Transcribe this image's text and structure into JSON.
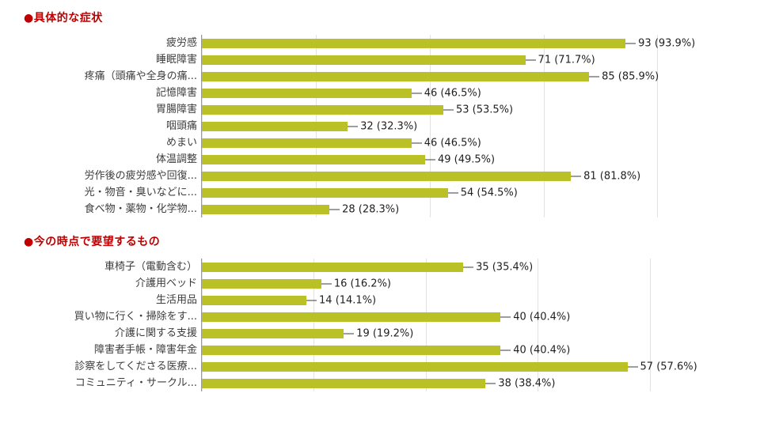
{
  "page": {
    "background": "#ffffff",
    "heading_color": "#c00000",
    "bar_color": "#b9c127",
    "gridline_color": "#e2e2e2",
    "axis_line_color": "#9a9a9a"
  },
  "chart_data": [
    {
      "type": "bar",
      "orientation": "horizontal",
      "title": "●具体的な症状",
      "categories": [
        "疲労感",
        "睡眠障害",
        "疼痛（頭痛や全身の痛...",
        "記憶障害",
        "胃腸障害",
        "咽頭痛",
        "めまい",
        "体温調整",
        "労作後の疲労感や回復...",
        "光・物音・臭いなどに...",
        "食べ物・薬物・化学物..."
      ],
      "values": [
        93,
        71,
        85,
        46,
        53,
        32,
        46,
        49,
        81,
        54,
        28
      ],
      "labels": [
        "93 (93.9%)",
        "71 (71.7%)",
        "85 (85.9%)",
        "46 (46.5%)",
        "53 (53.5%)",
        "32 (32.3%)",
        "46 (46.5%)",
        "49 (49.5%)",
        "81 (81.8%)",
        "54 (54.5%)",
        "28 (28.3%)"
      ],
      "xlabel": "",
      "ylabel": "",
      "xlim": [
        0,
        118
      ],
      "gridlines": [
        0,
        25,
        50,
        75,
        100
      ],
      "grid": true,
      "legend": "none",
      "bar_color": "#b9c127"
    },
    {
      "type": "bar",
      "orientation": "horizontal",
      "title": "●今の時点で要望するもの",
      "categories": [
        "車椅子（電動含む）",
        "介護用ベッド",
        "生活用品",
        "買い物に行く・掃除をす...",
        "介護に関する支援",
        "障害者手帳・障害年金",
        "診察をしてくださる医療...",
        "コミュニティ・サークル..."
      ],
      "values": [
        35,
        16,
        14,
        40,
        19,
        40,
        57,
        38
      ],
      "labels": [
        "35 (35.4%)",
        "16 (16.2%)",
        "14 (14.1%)",
        "40 (40.4%)",
        "19 (19.2%)",
        "40 (40.4%)",
        "57 (57.6%)",
        "38 (38.4%)"
      ],
      "xlabel": "",
      "ylabel": "",
      "xlim": [
        0,
        72
      ],
      "gridlines": [
        0,
        15,
        30,
        45,
        60
      ],
      "grid": true,
      "legend": "none",
      "bar_color": "#b9c127"
    }
  ]
}
